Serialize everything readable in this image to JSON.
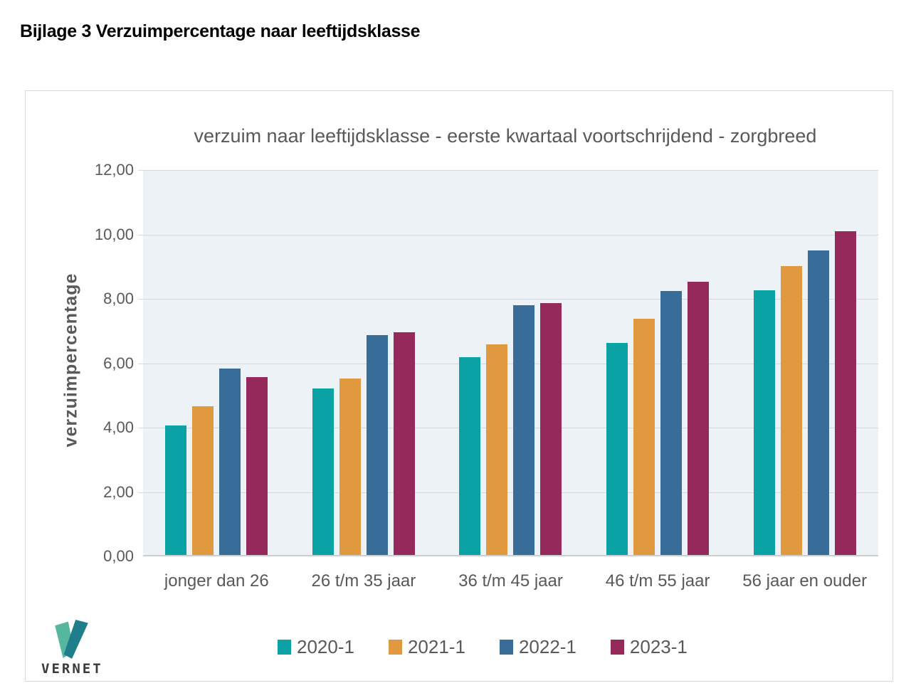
{
  "page": {
    "title": "Bijlage 3 Verzuimpercentage naar leeftijdsklasse"
  },
  "logo": {
    "text": "VERNET",
    "mark_color_left": "#55b79e",
    "mark_color_right": "#1f7e8c"
  },
  "chart_data": {
    "type": "bar",
    "title": "verzuim naar leeftijdsklasse - eerste kwartaal voortschrijdend - zorgbreed",
    "ylabel": "verzuimpercentage",
    "xlabel": "",
    "ylim": [
      0,
      12
    ],
    "ytick_step": 2,
    "ytick_labels": [
      "0,00",
      "2,00",
      "4,00",
      "6,00",
      "8,00",
      "10,00",
      "12,00"
    ],
    "grid": true,
    "plot_background": "#edf2f7",
    "gridline_color": "#d5d9de",
    "axis_text_color": "#595959",
    "legend_position": "bottom",
    "categories": [
      "jonger dan 26",
      "26 t/m 35 jaar",
      "36 t/m 45 jaar",
      "46 t/m 55 jaar",
      "56 jaar en ouder"
    ],
    "series": [
      {
        "name": "2020-1",
        "color": "#0aa2a4",
        "values": [
          4.02,
          5.18,
          6.14,
          6.59,
          8.23
        ]
      },
      {
        "name": "2021-1",
        "color": "#e0993f",
        "values": [
          4.63,
          5.48,
          6.54,
          7.34,
          8.97
        ]
      },
      {
        "name": "2022-1",
        "color": "#386d99",
        "values": [
          5.79,
          6.82,
          7.75,
          8.19,
          9.45
        ]
      },
      {
        "name": "2023-1",
        "color": "#96295b",
        "values": [
          5.52,
          6.91,
          7.83,
          8.49,
          10.05
        ]
      }
    ]
  }
}
